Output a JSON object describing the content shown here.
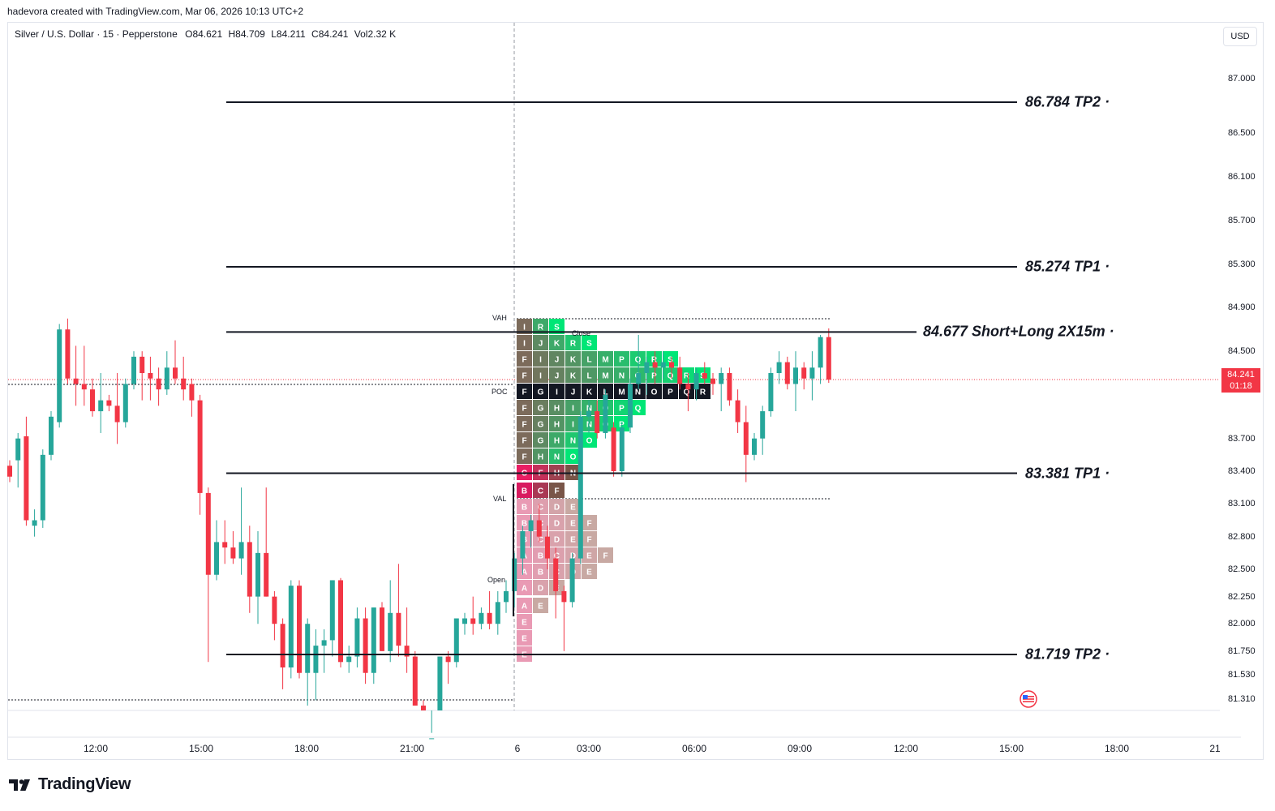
{
  "caption": "hadevora created with TradingView.com, Mar 06, 2026 10:13 UTC+2",
  "legend": {
    "symbol": "Silver / U.S. Dollar · 15 · Pepperstone",
    "o_label": "O",
    "o": "84.621",
    "h_label": "H",
    "h": "84.709",
    "l_label": "L",
    "l": "84.211",
    "c_label": "C",
    "c": "84.241",
    "vol_label": "Vol",
    "vol": "2.32 K"
  },
  "currency_button": "USD",
  "current_price": {
    "value": "84.241",
    "countdown": "01:18"
  },
  "price_axis": [
    "87.000",
    "86.500",
    "86.100",
    "85.700",
    "85.300",
    "84.900",
    "84.500",
    "83.700",
    "83.400",
    "83.100",
    "82.800",
    "82.500",
    "82.250",
    "82.000",
    "81.750",
    "81.530",
    "81.310"
  ],
  "time_axis": [
    "12:00",
    "15:00",
    "18:00",
    "21:00",
    "6",
    "03:00",
    "06:00",
    "09:00",
    "12:00",
    "15:00",
    "18:00",
    "21"
  ],
  "levels": [
    {
      "label": "86.784 TP2",
      "price": 86.784
    },
    {
      "label": "85.274 TP1",
      "price": 85.274
    },
    {
      "label": "84.677 Short+Long 2X15m",
      "price": 84.677
    },
    {
      "label": "83.381 TP1",
      "price": 83.381
    },
    {
      "label": "81.719 TP2",
      "price": 81.719
    }
  ],
  "tpo_tags": {
    "vah": "VAH",
    "poc": "POC",
    "val": "VAL",
    "open": "Open",
    "close": "Close"
  },
  "colors": {
    "up": "#26a69a",
    "down": "#f23645",
    "level": "#131722",
    "poc_row": "#131722",
    "upper_start": "#7c6b5b",
    "upper_end": "#00e676",
    "lower_start": "#e91e63",
    "lower_end": "#795548"
  },
  "tpo_rows": [
    {
      "price": 84.75,
      "letters": [
        "I",
        "R",
        "S"
      ]
    },
    {
      "price": 84.6,
      "letters": [
        "I",
        "J",
        "K",
        "R",
        "S"
      ]
    },
    {
      "price": 84.45,
      "letters": [
        "F",
        "I",
        "J",
        "K",
        "L",
        "M",
        "P",
        "Q",
        "R",
        "S"
      ]
    },
    {
      "price": 84.3,
      "letters": [
        "F",
        "I",
        "J",
        "K",
        "L",
        "M",
        "N",
        "O",
        "P",
        "Q",
        "R",
        "S"
      ]
    },
    {
      "price": 84.15,
      "letters": [
        "F",
        "G",
        "I",
        "J",
        "K",
        "L",
        "M",
        "N",
        "O",
        "P",
        "Q",
        "R"
      ],
      "poc": true
    },
    {
      "price": 84.0,
      "letters": [
        "F",
        "G",
        "H",
        "I",
        "N",
        "O",
        "P",
        "Q"
      ]
    },
    {
      "price": 83.85,
      "letters": [
        "F",
        "G",
        "H",
        "I",
        "N",
        "O",
        "P"
      ]
    },
    {
      "price": 83.7,
      "letters": [
        "F",
        "G",
        "H",
        "N",
        "O"
      ]
    },
    {
      "price": 83.55,
      "letters": [
        "F",
        "H",
        "N",
        "O"
      ]
    },
    {
      "price": 83.4,
      "letters": [
        "C",
        "F",
        "H",
        "N"
      ]
    },
    {
      "price": 83.25,
      "letters": [
        "B",
        "C",
        "F"
      ]
    },
    {
      "price": 83.1,
      "letters": [
        "B",
        "C",
        "D",
        "E"
      ],
      "faded": true
    },
    {
      "price": 82.95,
      "letters": [
        "B",
        "C",
        "D",
        "E",
        "F"
      ],
      "faded": true
    },
    {
      "price": 82.8,
      "letters": [
        "B",
        "C",
        "D",
        "E",
        "F"
      ],
      "faded": true
    },
    {
      "price": 82.65,
      "letters": [
        "A",
        "B",
        "C",
        "D",
        "E",
        "F"
      ],
      "faded": true
    },
    {
      "price": 82.5,
      "letters": [
        "A",
        "B",
        "C",
        "D",
        "E"
      ],
      "faded": true
    },
    {
      "price": 82.35,
      "letters": [
        "A",
        "D",
        "E"
      ],
      "faded": true
    },
    {
      "price": 82.2,
      "letters": [
        "A",
        "E"
      ],
      "faded": true
    },
    {
      "price": 82.05,
      "letters": [
        "E"
      ],
      "faded": true
    },
    {
      "price": 81.9,
      "letters": [
        "E"
      ],
      "faded": true
    },
    {
      "price": 81.75,
      "letters": [
        "E"
      ],
      "faded": true
    }
  ],
  "chart_data": {
    "type": "candlestick",
    "ylim": [
      81.25,
      87.2
    ],
    "candles": [
      [
        83.45,
        83.5,
        83.3,
        83.35
      ],
      [
        83.5,
        83.75,
        83.25,
        83.7
      ],
      [
        83.72,
        83.9,
        82.9,
        82.95
      ],
      [
        82.9,
        83.05,
        82.8,
        82.95
      ],
      [
        82.95,
        83.6,
        82.88,
        83.55
      ],
      [
        83.55,
        83.95,
        83.5,
        83.9
      ],
      [
        83.85,
        84.75,
        83.8,
        84.7
      ],
      [
        84.7,
        84.8,
        84.2,
        84.25
      ],
      [
        84.25,
        84.55,
        84.0,
        84.2
      ],
      [
        84.2,
        84.55,
        84.0,
        84.15
      ],
      [
        84.15,
        84.25,
        83.9,
        83.95
      ],
      [
        83.95,
        84.3,
        83.75,
        84.05
      ],
      [
        84.05,
        84.1,
        83.95,
        84.0
      ],
      [
        84.0,
        84.3,
        83.65,
        83.85
      ],
      [
        83.85,
        84.25,
        83.8,
        84.2
      ],
      [
        84.2,
        84.5,
        84.15,
        84.45
      ],
      [
        84.45,
        84.5,
        84.05,
        84.3
      ],
      [
        84.3,
        84.45,
        84.05,
        84.25
      ],
      [
        84.25,
        84.35,
        84.0,
        84.15
      ],
      [
        84.15,
        84.5,
        84.1,
        84.35
      ],
      [
        84.35,
        84.6,
        84.2,
        84.25
      ],
      [
        84.25,
        84.45,
        84.05,
        84.15
      ],
      [
        84.2,
        84.25,
        83.9,
        84.05
      ],
      [
        84.05,
        84.1,
        83.0,
        83.2
      ],
      [
        83.2,
        83.25,
        81.65,
        82.45
      ],
      [
        82.45,
        82.95,
        82.4,
        82.75
      ],
      [
        82.75,
        82.95,
        82.55,
        82.7
      ],
      [
        82.7,
        82.85,
        82.55,
        82.6
      ],
      [
        82.6,
        83.25,
        82.45,
        82.75
      ],
      [
        82.75,
        82.9,
        82.1,
        82.25
      ],
      [
        82.25,
        82.85,
        82.0,
        82.65
      ],
      [
        82.65,
        83.25,
        82.25,
        82.25
      ],
      [
        82.25,
        82.3,
        81.85,
        82.0
      ],
      [
        82.0,
        82.05,
        81.4,
        81.6
      ],
      [
        81.6,
        82.4,
        81.5,
        82.35
      ],
      [
        82.35,
        82.4,
        81.5,
        81.55
      ],
      [
        81.55,
        82.05,
        81.25,
        82.0
      ],
      [
        81.55,
        81.95,
        81.3,
        81.8
      ],
      [
        81.8,
        81.95,
        81.55,
        81.85
      ],
      [
        81.85,
        82.4,
        81.7,
        82.4
      ],
      [
        82.4,
        82.42,
        81.6,
        81.65
      ],
      [
        81.65,
        81.8,
        81.55,
        81.7
      ],
      [
        81.7,
        82.15,
        81.6,
        82.05
      ],
      [
        82.05,
        82.15,
        81.45,
        81.55
      ],
      [
        81.55,
        82.15,
        81.45,
        82.15
      ],
      [
        82.15,
        82.2,
        81.75,
        81.75
      ],
      [
        81.75,
        82.4,
        81.65,
        82.1
      ],
      [
        82.1,
        82.55,
        81.7,
        81.8
      ],
      [
        81.8,
        82.15,
        81.55,
        81.7
      ],
      [
        81.7,
        81.75,
        81.25,
        81.25
      ],
      [
        81.25,
        81.3,
        80.6,
        80.7
      ],
      [
        80.7,
        81.0,
        80.6,
        80.95
      ],
      [
        80.95,
        81.7,
        80.85,
        81.7
      ],
      [
        81.7,
        81.75,
        81.45,
        81.65
      ],
      [
        81.65,
        82.05,
        81.6,
        82.05
      ],
      [
        82.0,
        82.1,
        81.9,
        82.05
      ],
      [
        82.05,
        82.25,
        81.9,
        82.0
      ],
      [
        82.0,
        82.15,
        81.95,
        82.1
      ],
      [
        82.1,
        82.3,
        81.95,
        82.0
      ],
      [
        82.0,
        82.3,
        81.9,
        82.2
      ],
      [
        82.2,
        82.4,
        82.1,
        82.3
      ],
      [
        82.3,
        82.65,
        82.15,
        82.6
      ],
      [
        82.6,
        82.9,
        82.45,
        82.85
      ],
      [
        82.85,
        83.0,
        82.7,
        82.95
      ],
      [
        82.95,
        83.1,
        82.75,
        82.8
      ],
      [
        82.8,
        82.9,
        82.5,
        82.6
      ],
      [
        82.6,
        82.7,
        82.05,
        82.3
      ],
      [
        82.3,
        82.35,
        81.75,
        82.2
      ],
      [
        82.2,
        82.65,
        82.15,
        82.6
      ],
      [
        82.6,
        83.95,
        82.55,
        83.9
      ],
      [
        83.9,
        84.05,
        83.75,
        83.95
      ],
      [
        83.95,
        84.05,
        83.7,
        83.75
      ],
      [
        83.75,
        84.15,
        83.7,
        84.1
      ],
      [
        83.8,
        83.85,
        83.35,
        83.4
      ],
      [
        83.4,
        83.85,
        83.35,
        83.8
      ],
      [
        83.8,
        84.25,
        83.75,
        84.2
      ],
      [
        84.2,
        84.65,
        84.15,
        84.3
      ],
      [
        84.3,
        84.45,
        84.1,
        84.4
      ],
      [
        84.4,
        84.5,
        84.2,
        84.35
      ],
      [
        84.35,
        84.5,
        84.25,
        84.4
      ],
      [
        84.4,
        84.45,
        84.25,
        84.35
      ],
      [
        84.35,
        84.45,
        84.15,
        84.2
      ],
      [
        84.2,
        84.3,
        83.95,
        84.15
      ],
      [
        84.15,
        84.35,
        84.05,
        84.3
      ],
      [
        84.3,
        84.4,
        84.2,
        84.25
      ],
      [
        84.25,
        84.3,
        84.1,
        84.2
      ],
      [
        84.2,
        84.35,
        83.95,
        84.3
      ],
      [
        84.3,
        84.35,
        84.0,
        84.05
      ],
      [
        84.05,
        84.15,
        83.75,
        83.85
      ],
      [
        83.85,
        84.0,
        83.3,
        83.55
      ],
      [
        83.55,
        83.75,
        83.5,
        83.7
      ],
      [
        83.7,
        84.0,
        83.55,
        83.95
      ],
      [
        83.95,
        84.35,
        83.9,
        84.3
      ],
      [
        84.3,
        84.5,
        84.2,
        84.4
      ],
      [
        84.4,
        84.45,
        84.15,
        84.2
      ],
      [
        84.2,
        84.5,
        83.95,
        84.35
      ],
      [
        84.35,
        84.4,
        84.15,
        84.25
      ],
      [
        84.25,
        84.5,
        84.05,
        84.35
      ],
      [
        84.35,
        84.65,
        84.2,
        84.63
      ],
      [
        84.63,
        84.71,
        84.21,
        84.24
      ]
    ]
  }
}
